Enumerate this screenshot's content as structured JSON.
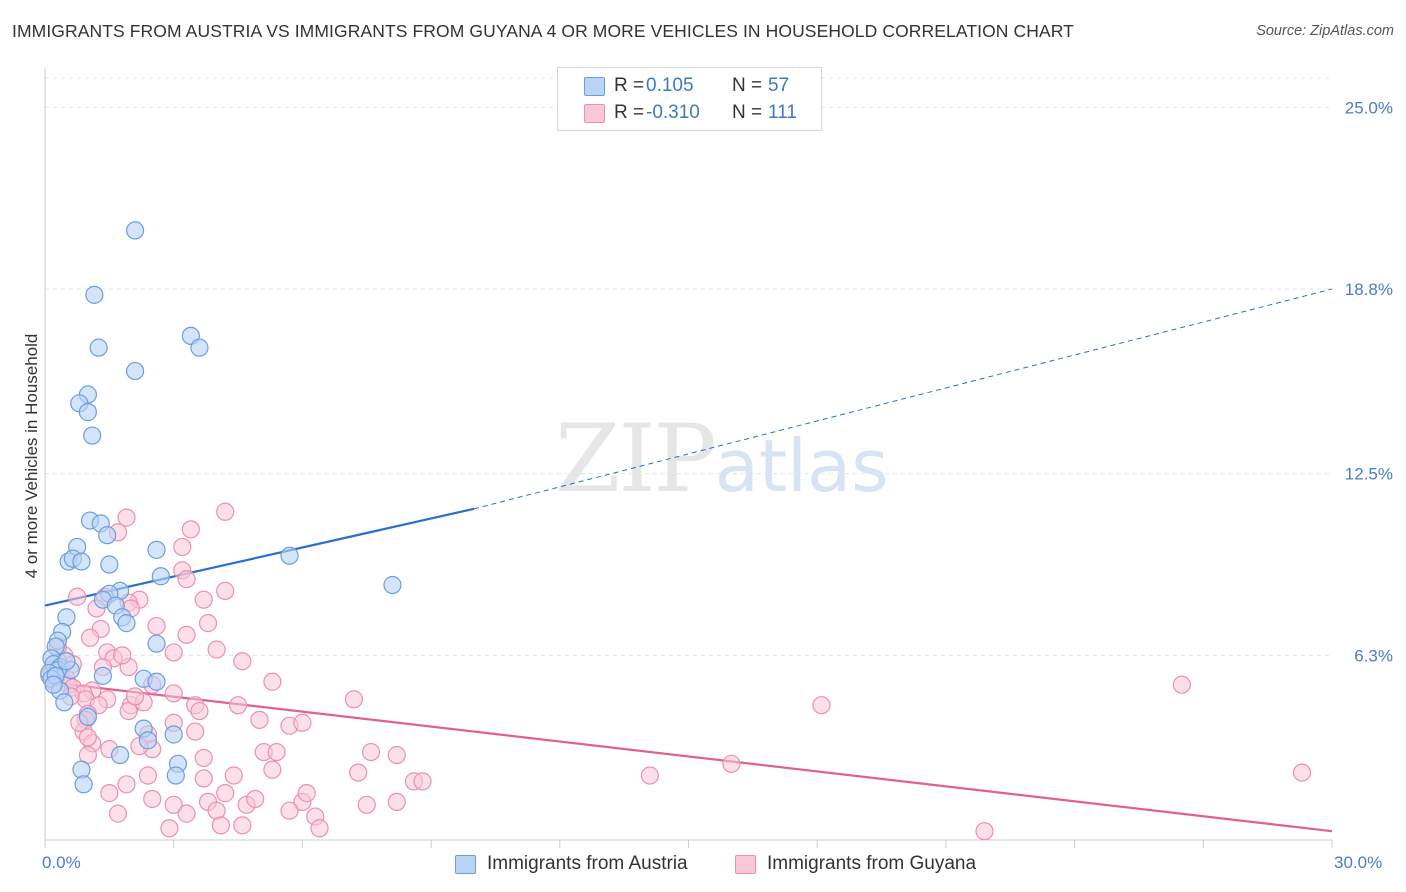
{
  "header": {
    "title": "IMMIGRANTS FROM AUSTRIA VS IMMIGRANTS FROM GUYANA 4 OR MORE VEHICLES IN HOUSEHOLD CORRELATION CHART",
    "source": "Source: ZipAtlas.com"
  },
  "watermark": {
    "zip": "ZIP",
    "atlas": "atlas"
  },
  "legend": {
    "r_label": "R =",
    "n_label": "N =",
    "austria": {
      "r": "0.105",
      "n": "57"
    },
    "guyana": {
      "r": "-0.310",
      "n": "111"
    }
  },
  "colors": {
    "austria_fill": "#b9d4f5",
    "austria_stroke": "#6a9ee0",
    "austria_line": "#2a6fcf",
    "guyana_fill": "#f9c7d7",
    "guyana_stroke": "#ec90b0",
    "guyana_line": "#e0628c",
    "tick_label": "#4a7cc9"
  },
  "chart_data": {
    "type": "scatter",
    "title": "IMMIGRANTS FROM AUSTRIA VS IMMIGRANTS FROM GUYANA 4 OR MORE VEHICLES IN HOUSEHOLD CORRELATION CHART",
    "xlabel": "",
    "ylabel": "4 or more Vehicles in Household",
    "xlim": [
      0,
      30
    ],
    "ylim": [
      0,
      26
    ],
    "x_tick_labels": [
      "0.0%",
      "30.0%"
    ],
    "y_ticks": [
      6.3,
      12.5,
      18.8,
      25.0
    ],
    "y_tick_labels": [
      "6.3%",
      "12.5%",
      "18.8%",
      "25.0%"
    ],
    "legend_position": "top-center",
    "series": [
      {
        "name": "Immigrants from Austria",
        "trend": {
          "x": [
            0,
            10
          ],
          "y": [
            8.0,
            11.3
          ],
          "dashed_to": [
            30,
            18.8
          ]
        },
        "points": [
          [
            2.1,
            20.8
          ],
          [
            1.15,
            18.6
          ],
          [
            3.4,
            17.2
          ],
          [
            3.6,
            16.8
          ],
          [
            1.25,
            16.8
          ],
          [
            2.1,
            16.0
          ],
          [
            1.0,
            15.2
          ],
          [
            0.8,
            14.9
          ],
          [
            1.0,
            14.6
          ],
          [
            1.1,
            13.8
          ],
          [
            1.05,
            10.9
          ],
          [
            1.3,
            10.8
          ],
          [
            1.45,
            10.4
          ],
          [
            0.75,
            10.0
          ],
          [
            2.6,
            9.9
          ],
          [
            0.55,
            9.5
          ],
          [
            0.65,
            9.6
          ],
          [
            0.85,
            9.5
          ],
          [
            1.5,
            9.4
          ],
          [
            5.7,
            9.7
          ],
          [
            2.7,
            9.0
          ],
          [
            8.1,
            8.7
          ],
          [
            1.75,
            8.5
          ],
          [
            1.5,
            8.4
          ],
          [
            1.35,
            8.2
          ],
          [
            1.65,
            8.0
          ],
          [
            0.5,
            7.6
          ],
          [
            1.8,
            7.6
          ],
          [
            1.9,
            7.4
          ],
          [
            0.4,
            7.1
          ],
          [
            0.3,
            6.8
          ],
          [
            2.6,
            6.7
          ],
          [
            0.25,
            6.6
          ],
          [
            0.15,
            6.2
          ],
          [
            0.2,
            6.0
          ],
          [
            0.35,
            5.9
          ],
          [
            0.6,
            5.8
          ],
          [
            0.3,
            5.8
          ],
          [
            0.1,
            5.7
          ],
          [
            0.15,
            5.5
          ],
          [
            0.25,
            5.6
          ],
          [
            1.35,
            5.6
          ],
          [
            2.3,
            5.5
          ],
          [
            2.6,
            5.4
          ],
          [
            0.35,
            5.1
          ],
          [
            0.45,
            4.7
          ],
          [
            1.0,
            4.2
          ],
          [
            2.3,
            3.8
          ],
          [
            3.0,
            3.6
          ],
          [
            2.4,
            3.4
          ],
          [
            1.75,
            2.9
          ],
          [
            0.85,
            2.4
          ],
          [
            0.9,
            1.9
          ],
          [
            3.1,
            2.6
          ],
          [
            3.05,
            2.2
          ],
          [
            0.2,
            5.3
          ],
          [
            0.5,
            6.1
          ]
        ]
      },
      {
        "name": "Immigrants from Guyana",
        "trend": {
          "x": [
            0,
            30
          ],
          "y": [
            5.4,
            0.3
          ]
        },
        "points": [
          [
            4.2,
            11.2
          ],
          [
            1.9,
            11.0
          ],
          [
            3.4,
            10.6
          ],
          [
            1.7,
            10.5
          ],
          [
            3.2,
            10.0
          ],
          [
            3.2,
            9.2
          ],
          [
            3.3,
            8.9
          ],
          [
            4.2,
            8.5
          ],
          [
            3.7,
            8.2
          ],
          [
            1.4,
            8.3
          ],
          [
            0.75,
            8.3
          ],
          [
            2.2,
            8.2
          ],
          [
            1.95,
            8.1
          ],
          [
            2.0,
            7.9
          ],
          [
            1.2,
            7.9
          ],
          [
            3.8,
            7.4
          ],
          [
            1.3,
            7.2
          ],
          [
            3.3,
            7.0
          ],
          [
            1.05,
            6.9
          ],
          [
            4.0,
            6.5
          ],
          [
            1.45,
            6.4
          ],
          [
            3.0,
            6.4
          ],
          [
            1.6,
            6.2
          ],
          [
            4.6,
            6.1
          ],
          [
            0.45,
            6.3
          ],
          [
            0.65,
            6.0
          ],
          [
            0.3,
            6.1
          ],
          [
            1.35,
            5.9
          ],
          [
            1.95,
            5.9
          ],
          [
            0.15,
            5.8
          ],
          [
            0.35,
            5.7
          ],
          [
            0.5,
            5.5
          ],
          [
            0.2,
            5.4
          ],
          [
            0.55,
            5.3
          ],
          [
            0.65,
            5.2
          ],
          [
            2.5,
            5.3
          ],
          [
            5.3,
            5.4
          ],
          [
            1.1,
            5.1
          ],
          [
            0.9,
            5.0
          ],
          [
            3.0,
            5.0
          ],
          [
            0.95,
            4.8
          ],
          [
            1.45,
            4.8
          ],
          [
            0.6,
            4.9
          ],
          [
            7.2,
            4.8
          ],
          [
            1.25,
            4.6
          ],
          [
            2.0,
            4.6
          ],
          [
            2.3,
            4.7
          ],
          [
            3.5,
            4.6
          ],
          [
            4.5,
            4.6
          ],
          [
            18.1,
            4.6
          ],
          [
            26.5,
            5.3
          ],
          [
            1.95,
            4.4
          ],
          [
            1.0,
            4.3
          ],
          [
            0.95,
            4.1
          ],
          [
            3.0,
            4.0
          ],
          [
            5.0,
            4.1
          ],
          [
            5.7,
            3.9
          ],
          [
            6.0,
            4.0
          ],
          [
            0.9,
            3.7
          ],
          [
            2.4,
            3.6
          ],
          [
            3.5,
            3.7
          ],
          [
            1.1,
            3.3
          ],
          [
            1.5,
            3.1
          ],
          [
            5.1,
            3.0
          ],
          [
            5.4,
            3.0
          ],
          [
            7.6,
            3.0
          ],
          [
            8.2,
            2.9
          ],
          [
            1.0,
            2.9
          ],
          [
            2.5,
            3.1
          ],
          [
            3.7,
            2.8
          ],
          [
            5.3,
            2.4
          ],
          [
            7.3,
            2.3
          ],
          [
            8.6,
            2.0
          ],
          [
            8.8,
            2.0
          ],
          [
            14.1,
            2.2
          ],
          [
            16.0,
            2.6
          ],
          [
            29.3,
            2.3
          ],
          [
            1.9,
            1.9
          ],
          [
            2.4,
            2.2
          ],
          [
            3.7,
            2.1
          ],
          [
            4.4,
            2.2
          ],
          [
            1.5,
            1.6
          ],
          [
            2.5,
            1.4
          ],
          [
            3.0,
            1.2
          ],
          [
            3.8,
            1.3
          ],
          [
            4.2,
            1.6
          ],
          [
            4.7,
            1.2
          ],
          [
            4.9,
            1.4
          ],
          [
            6.0,
            1.3
          ],
          [
            6.1,
            1.6
          ],
          [
            7.5,
            1.2
          ],
          [
            8.2,
            1.3
          ],
          [
            1.7,
            0.9
          ],
          [
            3.3,
            0.9
          ],
          [
            4.0,
            1.0
          ],
          [
            5.7,
            1.0
          ],
          [
            6.3,
            0.8
          ],
          [
            2.9,
            0.4
          ],
          [
            4.1,
            0.5
          ],
          [
            4.6,
            0.5
          ],
          [
            6.4,
            0.4
          ],
          [
            21.9,
            0.3
          ],
          [
            1.0,
            3.5
          ],
          [
            2.1,
            4.9
          ],
          [
            2.2,
            3.2
          ],
          [
            0.3,
            6.6
          ],
          [
            1.8,
            6.3
          ],
          [
            2.6,
            7.3
          ],
          [
            0.8,
            4.0
          ],
          [
            3.6,
            4.4
          ],
          [
            0.1,
            5.6
          ]
        ]
      }
    ]
  },
  "bottom_legend": {
    "austria_label": "Immigrants from Austria",
    "guyana_label": "Immigrants from Guyana"
  }
}
